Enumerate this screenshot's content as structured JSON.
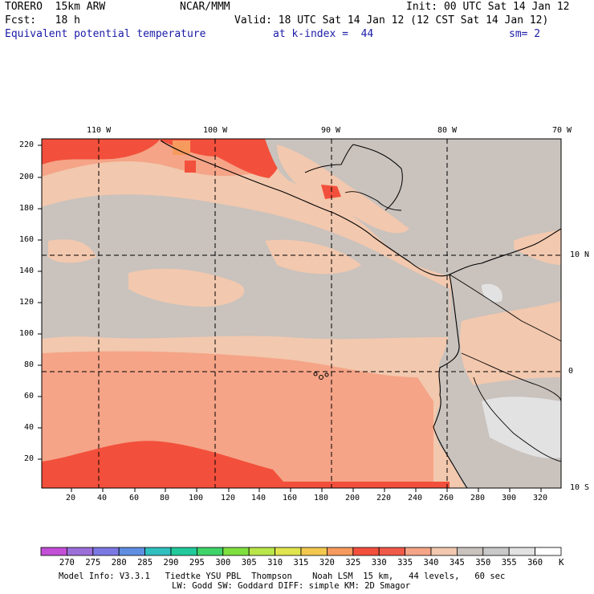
{
  "header": {
    "model": "TORERO  15km ARW",
    "center": "NCAR/MMM",
    "init": "Init: 00 UTC Sat 14 Jan 12",
    "fcst": "Fcst:   18 h",
    "valid": "Valid: 18 UTC Sat 14 Jan 12 (12 CST Sat 14 Jan 12)",
    "field": "Equivalent potential temperature",
    "level": "at k-index =  44",
    "smooth": "sm= 2"
  },
  "map": {
    "lon_labels": [
      "110 W",
      "100 W",
      "90 W",
      "80 W",
      "70 W"
    ],
    "lat_labels": [
      "10 N",
      "0",
      "10 S"
    ],
    "y_ticks": [
      "220",
      "200",
      "180",
      "160",
      "140",
      "120",
      "100",
      "80",
      "60",
      "40",
      "20"
    ],
    "x_ticks": [
      "20",
      "40",
      "60",
      "80",
      "100",
      "120",
      "140",
      "160",
      "180",
      "200",
      "220",
      "240",
      "260",
      "280",
      "300",
      "320"
    ]
  },
  "colorbar": {
    "labels": [
      "270",
      "275",
      "280",
      "285",
      "290",
      "295",
      "300",
      "305",
      "310",
      "315",
      "320",
      "325",
      "330",
      "335",
      "340",
      "345",
      "350",
      "355",
      "360"
    ],
    "unit": "K",
    "colors": [
      "#c24fd6",
      "#9b6fd9",
      "#7c78e3",
      "#5f8ee0",
      "#2fbfbf",
      "#22c99a",
      "#3fd36a",
      "#7fdf3f",
      "#b9e64a",
      "#e0e44f",
      "#f2c84f",
      "#f79a5e",
      "#f2503c",
      "#f05a48",
      "#f5a487",
      "#f2c8ae",
      "#c9c2bd",
      "#c9c9c9",
      "#e2e2e2",
      "#ffffff"
    ]
  },
  "footer": {
    "line1": "Model Info: V3.3.1   Tiedtke YSU PBL  Thompson    Noah LSM  15 km,   44 levels,   60 sec",
    "line2": "LW: Godd SW: Goddard DIFF: simple KM: 2D Smagor"
  }
}
